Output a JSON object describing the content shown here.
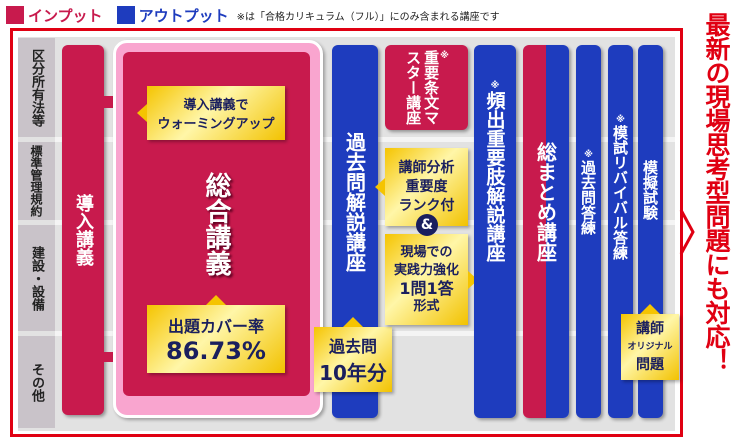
{
  "legend": {
    "input_label": "インプット",
    "output_label": "アウトプット",
    "note": "※は「合格カリキュラム（フル）」にのみ含まれる講座です",
    "colors": {
      "input": "#c81a4d",
      "output": "#1e3cbe",
      "accent": "#e00012"
    }
  },
  "rows": [
    "区分所有法等",
    "標準管理規約",
    "建設・設備",
    "その他"
  ],
  "courses": {
    "intro": "導入講義",
    "general": "総合講義",
    "past_exam": "過去問解説講座",
    "key_articles": "重要条文マスター講座",
    "key_articles_mark": "※",
    "frequent": "頻出重要肢解説講座",
    "frequent_mark": "※",
    "summary": "総まとめ講座",
    "past_drill": "過去問答練",
    "past_drill_mark": "※",
    "mock_revival": "模試リバイバル答練",
    "mock_revival_mark": "※",
    "mock_exam": "模擬試験"
  },
  "callouts": {
    "warmup_1": "導入講義で",
    "warmup_2": "ウォーミングアップ",
    "coverage_label": "出題カバー率",
    "coverage_value": "86.73%",
    "past10_1": "過去問",
    "past10_2": "10年分",
    "rank_1": "講師分析",
    "rank_2": "重要度",
    "rank_3": "ランク付",
    "and": "&",
    "practice_1": "現場での",
    "practice_2": "実践力強化",
    "practice_3": "1問1答",
    "practice_4": "形式",
    "original_1": "講師",
    "original_2": "オリジナル",
    "original_3": "問題"
  },
  "side_message": "最新の現場思考型問題にも対応！"
}
